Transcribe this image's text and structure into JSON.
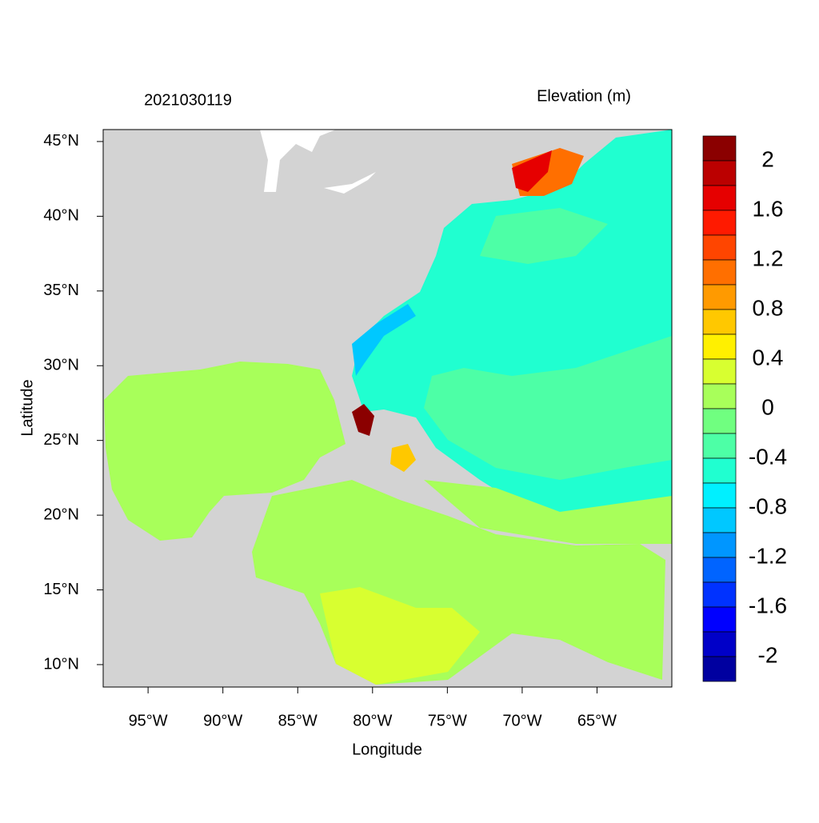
{
  "chart_data": {
    "type": "map",
    "title": "2021030119",
    "colorbar_title": "Elevation (m)",
    "xlabel": "Longitude",
    "ylabel": "Latitude",
    "xlim": [
      -98,
      -60
    ],
    "ylim": [
      8.5,
      45.8
    ],
    "xticks": [
      {
        "value": -95,
        "label": "95°W"
      },
      {
        "value": -90,
        "label": "90°W"
      },
      {
        "value": -85,
        "label": "85°W"
      },
      {
        "value": -80,
        "label": "80°W"
      },
      {
        "value": -75,
        "label": "75°W"
      },
      {
        "value": -70,
        "label": "70°W"
      },
      {
        "value": -65,
        "label": "65°W"
      }
    ],
    "yticks": [
      {
        "value": 10,
        "label": "10°N"
      },
      {
        "value": 15,
        "label": "15°N"
      },
      {
        "value": 20,
        "label": "20°N"
      },
      {
        "value": 25,
        "label": "25°N"
      },
      {
        "value": 30,
        "label": "30°N"
      },
      {
        "value": 35,
        "label": "35°N"
      },
      {
        "value": 40,
        "label": "40°N"
      },
      {
        "value": 45,
        "label": "45°N"
      }
    ],
    "levels": [
      2,
      1.8,
      1.6,
      1.4,
      1.2,
      1,
      0.8,
      0.6,
      0.4,
      0.2,
      0,
      -0.2,
      -0.4,
      -0.6,
      -0.8,
      -1,
      -1.2,
      -1.4,
      -1.6,
      -1.8,
      -2
    ],
    "colors": [
      "#8b0000",
      "#bb0000",
      "#e60000",
      "#ff1a00",
      "#ff4500",
      "#ff6f00",
      "#ff9a00",
      "#ffc800",
      "#fff000",
      "#d8ff30",
      "#a8ff5a",
      "#70ff80",
      "#4dffa6",
      "#20ffd0",
      "#00f0ff",
      "#00c8ff",
      "#0096ff",
      "#0064ff",
      "#0032ff",
      "#0000ff",
      "#0000c8",
      "#0000a0"
    ],
    "colorbar_ticks": [
      2,
      1.6,
      1.2,
      0.8,
      0.4,
      0,
      -0.4,
      -0.8,
      -1.2,
      -1.6,
      -2
    ]
  }
}
